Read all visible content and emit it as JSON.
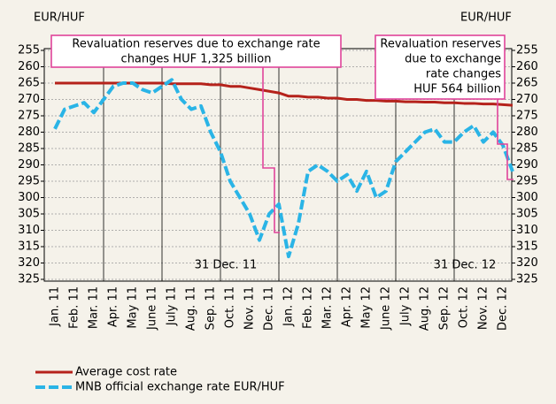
{
  "chart_data": {
    "type": "line",
    "y_label_left": "EUR/HUF",
    "y_label_right": "EUR/HUF",
    "categories": [
      "Jan. 11",
      null,
      "Feb. 11",
      null,
      "Mar. 11",
      null,
      "Apr. 11",
      null,
      "May 11",
      null,
      "June 11",
      null,
      "July 11",
      null,
      "Aug. 11",
      null,
      "Sep. 11",
      null,
      "Oct. 11",
      null,
      "Nov. 11",
      null,
      "Dec. 11",
      null,
      "Jan. 12",
      null,
      "Feb. 12",
      null,
      "Mar. 12",
      null,
      "Apr. 12",
      null,
      "May 12",
      null,
      "June 12",
      null,
      "July 12",
      null,
      "Aug. 12",
      null,
      "Sep. 12",
      null,
      "Oct. 12",
      null,
      "Nov. 12",
      null,
      "Dec. 12",
      null
    ],
    "series": [
      {
        "name": "Average cost rate",
        "color": "#b5221b",
        "dashed": false,
        "values": [
          265,
          265,
          265,
          265,
          265,
          265,
          265,
          265,
          265,
          265,
          265,
          265,
          265.2,
          265.2,
          265.2,
          265.2,
          265.5,
          265.5,
          266,
          266,
          266.5,
          267,
          267.5,
          268,
          269,
          269,
          269.3,
          269.3,
          269.6,
          269.6,
          270,
          270,
          270.3,
          270.3,
          270.5,
          270.5,
          270.7,
          270.7,
          270.8,
          270.8,
          271,
          271,
          271.2,
          271.2,
          271.4,
          271.4,
          271.6,
          271.8
        ]
      },
      {
        "name": "MNB official exchange rate EUR/HUF",
        "color": "#2ab4e6",
        "dashed": true,
        "values": [
          279,
          273,
          272,
          271,
          274,
          270,
          266,
          265,
          265,
          267,
          268,
          266,
          264,
          270,
          273,
          272,
          280,
          286,
          295,
          300,
          305,
          313,
          305,
          302,
          318,
          308,
          292,
          290,
          292,
          295,
          293,
          298,
          292,
          300,
          298,
          289,
          286,
          283,
          280,
          279,
          283,
          283,
          280,
          278,
          283,
          280,
          284,
          292
        ]
      }
    ],
    "ylim": [
      255,
      325
    ],
    "y2lim": [
      255,
      325
    ],
    "yticks": [
      255,
      260,
      265,
      270,
      275,
      280,
      285,
      290,
      295,
      300,
      305,
      310,
      315,
      320,
      325
    ],
    "y2ticks": [
      255,
      260,
      265,
      270,
      275,
      280,
      285,
      290,
      295,
      300,
      305,
      310,
      315,
      320,
      325
    ],
    "y_inverted": true,
    "grid": true,
    "annotations": [
      {
        "lines": [
          "Revaluation reserves due to exchange rate",
          "changes HUF 1,325 billion"
        ]
      },
      {
        "lines": [
          "Revaluation reserves",
          "due to exchange",
          "rate changes",
          "HUF 564 billion"
        ]
      }
    ],
    "date_notes": [
      "31 Dec. 11",
      "31 Dec. 12"
    ]
  }
}
